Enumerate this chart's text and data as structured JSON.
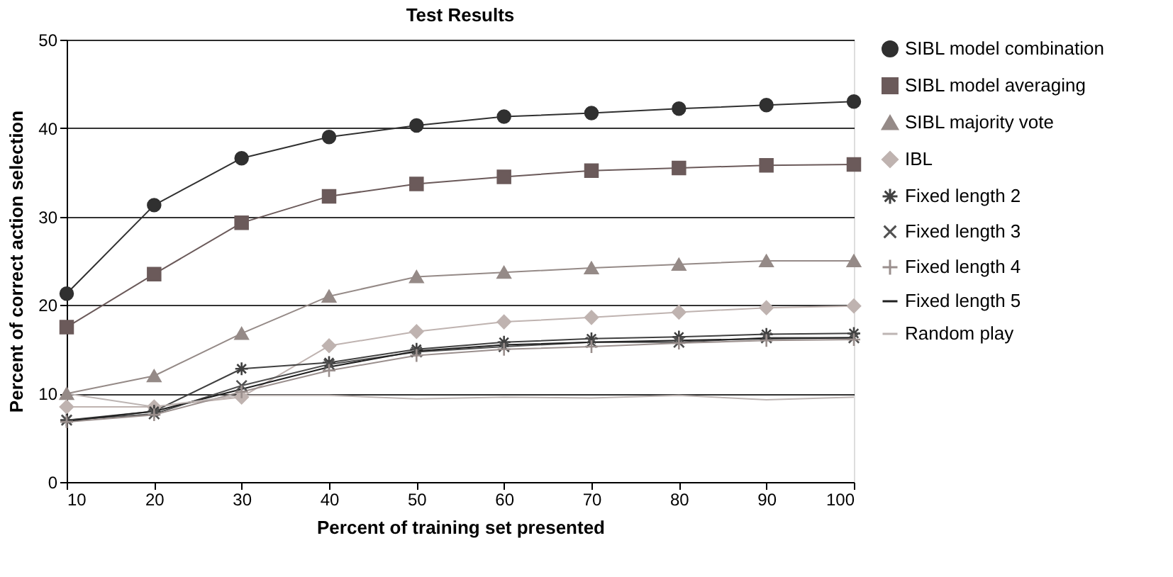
{
  "chart_data": {
    "type": "line",
    "title": "Test Results",
    "xlabel": "Percent of training set presented",
    "ylabel": "Percent of correct action selection",
    "x": [
      10,
      20,
      30,
      40,
      50,
      60,
      70,
      80,
      90,
      100
    ],
    "xlim": [
      10,
      100
    ],
    "xticks": [
      10,
      20,
      30,
      40,
      50,
      60,
      70,
      80,
      90,
      100
    ],
    "ylim": [
      0,
      50
    ],
    "yticks": [
      0,
      10,
      20,
      30,
      40,
      50
    ],
    "grid": "y",
    "legend": "right",
    "line_style": "solid",
    "series": [
      {
        "name": "SIBL model combination",
        "color": "#303030",
        "marker": "circle",
        "values": [
          21.3,
          31.3,
          36.6,
          39,
          40.3,
          41.3,
          41.7,
          42.2,
          42.6,
          43
        ]
      },
      {
        "name": "SIBL model averaging",
        "color": "#6b5a5a",
        "marker": "square",
        "values": [
          17.5,
          23.5,
          29.3,
          32.3,
          33.7,
          34.5,
          35.2,
          35.5,
          35.8,
          35.9
        ]
      },
      {
        "name": "SIBL majority vote",
        "color": "#958a87",
        "marker": "triangle",
        "values": [
          10,
          12,
          16.8,
          21,
          23.2,
          23.7,
          24.2,
          24.6,
          25,
          25
        ]
      },
      {
        "name": "IBL",
        "color": "#bfb3b0",
        "marker": "diamond",
        "values": [
          8.5,
          8.5,
          9.6,
          15.4,
          17,
          18.1,
          18.6,
          19.2,
          19.7,
          19.9
        ]
      },
      {
        "name": "Fixed length 2",
        "color": "#404040",
        "marker": "cross",
        "values": [
          7,
          8,
          12.8,
          13.5,
          15,
          15.8,
          16.2,
          16.4,
          16.7,
          16.8
        ]
      },
      {
        "name": "Fixed length 3",
        "color": "#505050",
        "marker": "cross",
        "values": [
          7,
          7.7,
          10.9,
          13.3,
          14.7,
          15.3,
          15.8,
          15.8,
          16.3,
          16.3
        ]
      },
      {
        "name": "Fixed length 4",
        "color": "#9a8f8d",
        "marker": "cross",
        "values": [
          6.8,
          7.6,
          10.2,
          12.6,
          14.3,
          15,
          15.3,
          15.7,
          16,
          16.1
        ]
      },
      {
        "name": "Fixed length 5",
        "color": "#202020",
        "marker": "none",
        "values": [
          6.9,
          8,
          10.5,
          13,
          14.8,
          15.5,
          15.8,
          16,
          16.2,
          16.3
        ]
      },
      {
        "name": "Random play",
        "color": "#bdb5b3",
        "marker": "none",
        "values": [
          10,
          8.5,
          9.8,
          9.8,
          9.4,
          9.6,
          9.5,
          9.8,
          9.3,
          9.6
        ]
      }
    ]
  }
}
